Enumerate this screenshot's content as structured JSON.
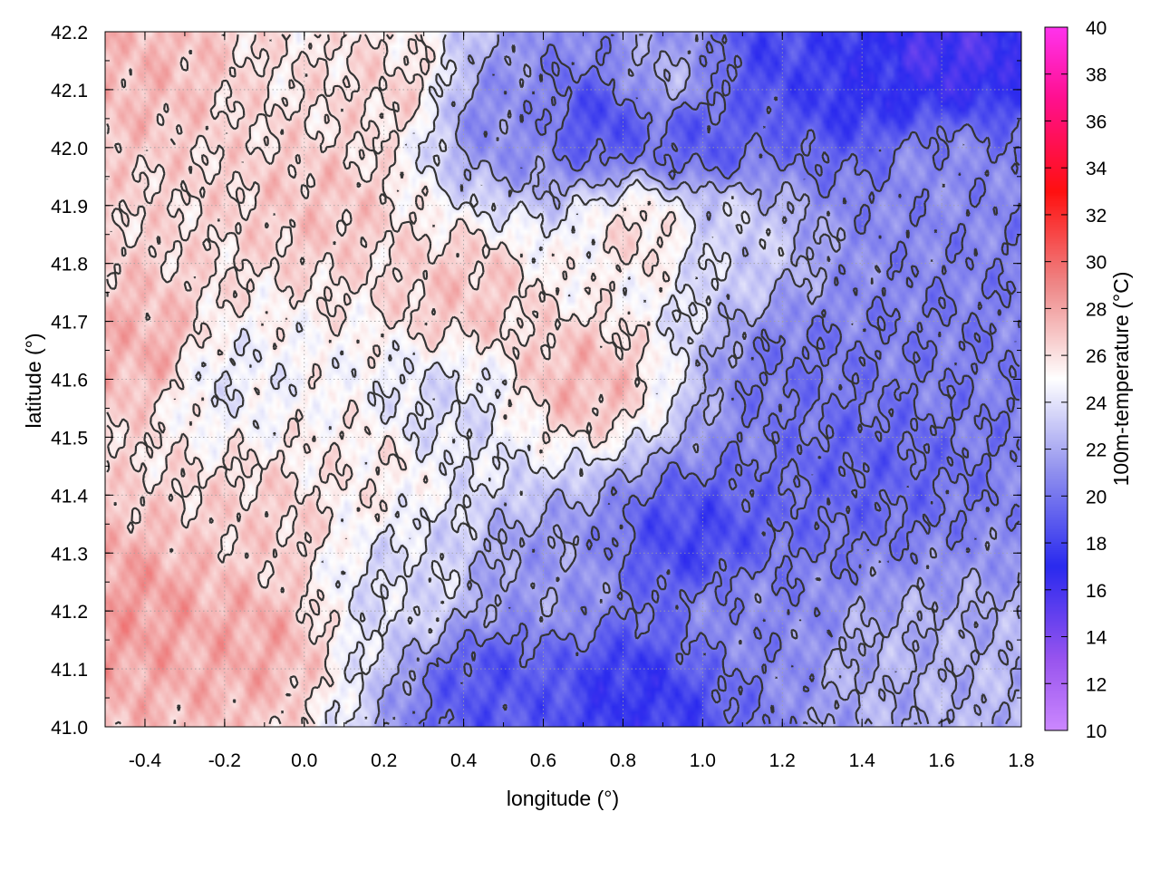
{
  "chart_data": {
    "type": "heatmap",
    "title": "",
    "xlabel": "longitude (°)",
    "ylabel": "latitude (°)",
    "colorbar_label": "100m-temperature (°C)",
    "xlim": [
      -0.5,
      1.8
    ],
    "ylim": [
      41.0,
      42.2
    ],
    "clim": [
      10,
      40
    ],
    "x_ticks": [
      -0.4,
      -0.2,
      0.0,
      0.2,
      0.4,
      0.6,
      0.8,
      1.0,
      1.2,
      1.4,
      1.6,
      1.8
    ],
    "x_tick_labels": [
      "-0.4",
      "-0.2",
      "0.0",
      "0.2",
      "0.4",
      "0.6",
      "0.8",
      "1.0",
      "1.2",
      "1.4",
      "1.6",
      "1.8"
    ],
    "y_ticks": [
      41.0,
      41.1,
      41.2,
      41.3,
      41.4,
      41.5,
      41.6,
      41.7,
      41.8,
      41.9,
      42.0,
      42.1,
      42.2
    ],
    "y_tick_labels": [
      "41.0",
      "41.1",
      "41.2",
      "41.3",
      "41.4",
      "41.5",
      "41.6",
      "41.7",
      "41.8",
      "41.9",
      "42.0",
      "42.1",
      "42.2"
    ],
    "colorbar_ticks": [
      10,
      12,
      14,
      16,
      18,
      20,
      22,
      24,
      26,
      28,
      30,
      32,
      34,
      36,
      38,
      40
    ],
    "colorbar_tick_labels": [
      "10",
      "12",
      "14",
      "16",
      "18",
      "20",
      "22",
      "24",
      "26",
      "28",
      "30",
      "32",
      "34",
      "36",
      "38",
      "40"
    ],
    "colormap": [
      {
        "value": 10,
        "color": "#cc88ff"
      },
      {
        "value": 13,
        "color": "#9955ee"
      },
      {
        "value": 17,
        "color": "#2a2aee"
      },
      {
        "value": 21,
        "color": "#8f8fee"
      },
      {
        "value": 25,
        "color": "#ffffff"
      },
      {
        "value": 29,
        "color": "#ee8888"
      },
      {
        "value": 33,
        "color": "#ff1010"
      },
      {
        "value": 37,
        "color": "#ff1090"
      },
      {
        "value": 40,
        "color": "#ff33ee"
      }
    ],
    "grid": true,
    "contours": true,
    "field_samples": [
      {
        "lon": -0.42,
        "lat": 41.2,
        "temp": 28.2
      },
      {
        "lon": -0.4,
        "lat": 41.65,
        "temp": 27.6
      },
      {
        "lon": -0.45,
        "lat": 42.15,
        "temp": 27.3
      },
      {
        "lon": -0.1,
        "lat": 41.35,
        "temp": 26.6
      },
      {
        "lon": -0.15,
        "lat": 41.15,
        "temp": 27.8
      },
      {
        "lon": 0.05,
        "lat": 41.9,
        "temp": 26.9
      },
      {
        "lon": 0.2,
        "lat": 42.1,
        "temp": 26.3
      },
      {
        "lon": 0.4,
        "lat": 41.75,
        "temp": 26.9
      },
      {
        "lon": 0.7,
        "lat": 41.6,
        "temp": 27.3
      },
      {
        "lon": 0.85,
        "lat": 41.85,
        "temp": 26.1
      },
      {
        "lon": 0.15,
        "lat": 41.45,
        "temp": 25.6
      },
      {
        "lon": -0.2,
        "lat": 41.6,
        "temp": 24.4
      },
      {
        "lon": 0.25,
        "lat": 41.25,
        "temp": 23.8
      },
      {
        "lon": 0.48,
        "lat": 41.07,
        "temp": 18.7
      },
      {
        "lon": 0.6,
        "lat": 41.25,
        "temp": 21.4
      },
      {
        "lon": 0.82,
        "lat": 41.05,
        "temp": 17.5
      },
      {
        "lon": 0.98,
        "lat": 41.32,
        "temp": 18.2
      },
      {
        "lon": 1.1,
        "lat": 41.2,
        "temp": 20.7
      },
      {
        "lon": 1.5,
        "lat": 41.1,
        "temp": 22.2
      },
      {
        "lon": 1.7,
        "lat": 41.05,
        "temp": 22.4
      },
      {
        "lon": 1.4,
        "lat": 41.45,
        "temp": 19.3
      },
      {
        "lon": 1.25,
        "lat": 41.6,
        "temp": 20.0
      },
      {
        "lon": 1.6,
        "lat": 41.65,
        "temp": 20.3
      },
      {
        "lon": 1.6,
        "lat": 41.95,
        "temp": 20.8
      },
      {
        "lon": 1.4,
        "lat": 42.12,
        "temp": 17.3
      },
      {
        "lon": 1.6,
        "lat": 42.17,
        "temp": 15.8
      },
      {
        "lon": 1.2,
        "lat": 42.15,
        "temp": 18.2
      },
      {
        "lon": 1.0,
        "lat": 42.02,
        "temp": 19.0
      },
      {
        "lon": 0.75,
        "lat": 42.05,
        "temp": 18.5
      },
      {
        "lon": 0.5,
        "lat": 42.05,
        "temp": 20.9
      },
      {
        "lon": 1.05,
        "lat": 41.85,
        "temp": 23.4
      },
      {
        "lon": 0.35,
        "lat": 41.55,
        "temp": 23.8
      },
      {
        "lon": 0.9,
        "lat": 42.12,
        "temp": 22.0
      }
    ]
  }
}
